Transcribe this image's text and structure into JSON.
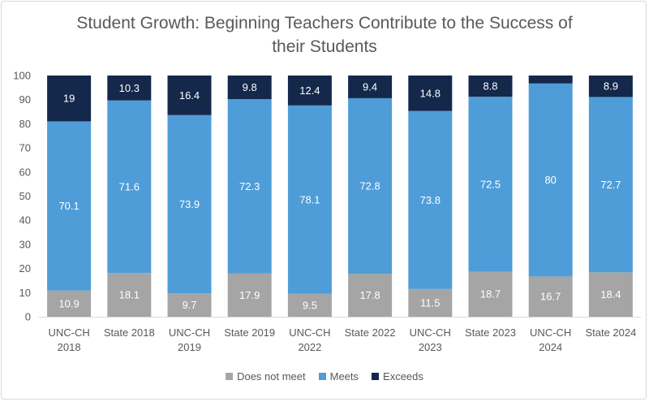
{
  "chart_data": {
    "type": "bar",
    "stacked": true,
    "title_line1": "Student Growth: Beginning Teachers Contribute to the Success of",
    "title_line2": "their Students",
    "categories": [
      [
        "UNC-CH",
        "2018"
      ],
      [
        "State 2018"
      ],
      [
        "UNC-CH",
        "2019"
      ],
      [
        "State 2019"
      ],
      [
        "UNC-CH",
        "2022"
      ],
      [
        "State 2022"
      ],
      [
        "UNC-CH",
        "2023"
      ],
      [
        "State 2023"
      ],
      [
        "UNC-CH",
        "2024"
      ],
      [
        "State 2024"
      ]
    ],
    "series": [
      {
        "name": "Does not meet",
        "color": "#a5a5a5",
        "values": [
          10.9,
          18.1,
          9.7,
          17.9,
          9.5,
          17.8,
          11.5,
          18.7,
          16.7,
          18.4
        ],
        "labels": [
          "10.9",
          "18.1",
          "9.7",
          "17.9",
          "9.5",
          "17.8",
          "11.5",
          "18.7",
          "16.7",
          "18.4"
        ]
      },
      {
        "name": "Meets",
        "color": "#4e9dd8",
        "values": [
          70.1,
          71.6,
          73.9,
          72.3,
          78.1,
          72.8,
          73.8,
          72.5,
          80,
          72.7
        ],
        "labels": [
          "70.1",
          "71.6",
          "73.9",
          "72.3",
          "78.1",
          "72.8",
          "73.8",
          "72.5",
          "80",
          "72.7"
        ]
      },
      {
        "name": "Exceeds",
        "color": "#14284b",
        "values": [
          19,
          10.3,
          16.4,
          9.8,
          12.4,
          9.4,
          14.8,
          8.8,
          3.3,
          8.9
        ],
        "labels": [
          "19",
          "10.3",
          "16.4",
          "9.8",
          "12.4",
          "9.4",
          "14.8",
          "8.8",
          "",
          "8.9"
        ]
      }
    ],
    "ylim": [
      0,
      100
    ],
    "yticks": [
      0,
      10,
      20,
      30,
      40,
      50,
      60,
      70,
      80,
      90,
      100
    ],
    "legend_position": "bottom",
    "grid": false
  }
}
